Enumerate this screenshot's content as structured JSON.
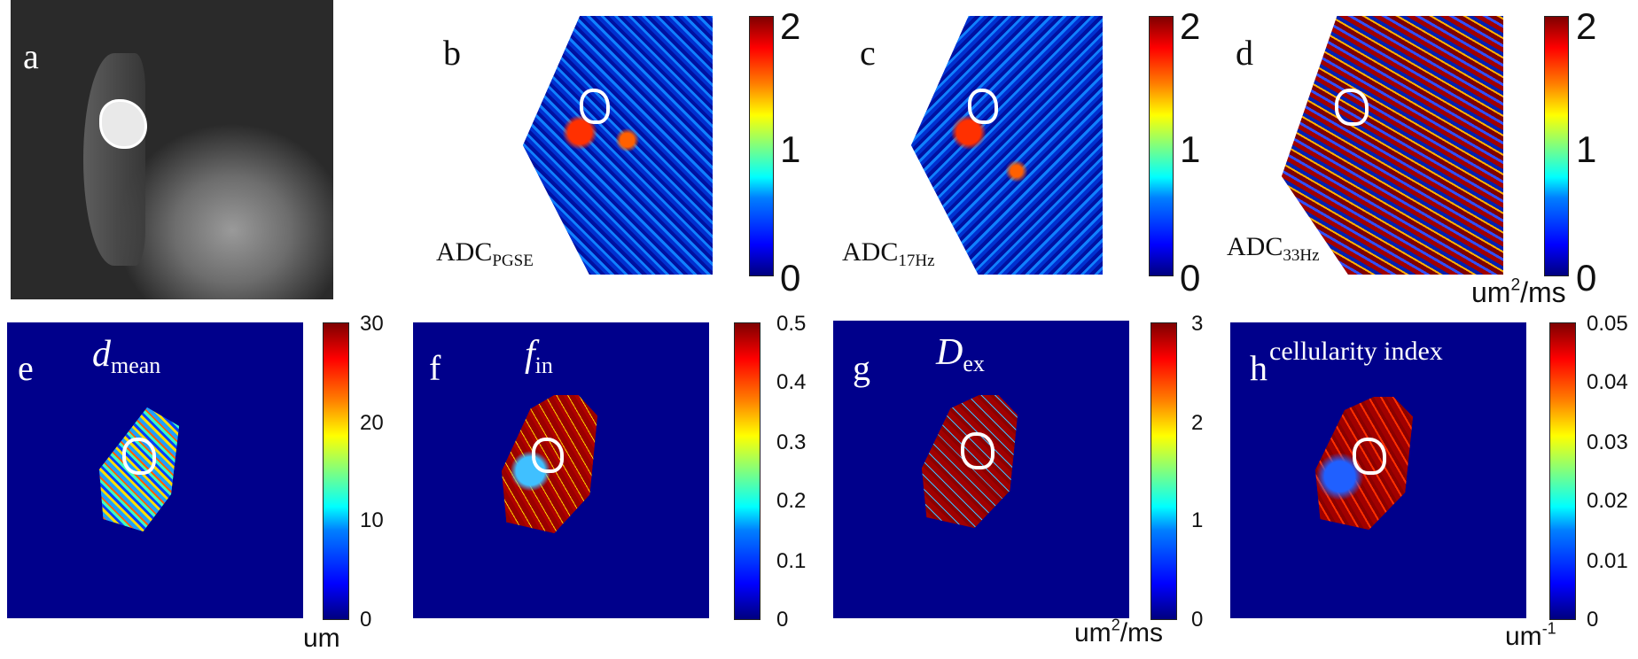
{
  "panels": {
    "a": {
      "letter": "a"
    },
    "b": {
      "letter": "b",
      "label": "ADC",
      "label_sub": "PGSE"
    },
    "c": {
      "letter": "c",
      "label": "ADC",
      "label_sub": "17Hz"
    },
    "d": {
      "letter": "d",
      "label": "ADC",
      "label_sub": "33Hz"
    },
    "e": {
      "letter": "e",
      "label": "d",
      "label_sub": "mean"
    },
    "f": {
      "letter": "f",
      "label": "f",
      "label_sub": "in"
    },
    "g": {
      "letter": "g",
      "label": "D",
      "label_sub": "ex"
    },
    "h": {
      "letter": "h",
      "label": "cellularity index"
    }
  },
  "colorbars": {
    "adc": {
      "ticks": [
        "2",
        "1",
        "0"
      ]
    },
    "dmean": {
      "ticks": [
        "30",
        "20",
        "10",
        "0"
      ],
      "unit": "um"
    },
    "fin": {
      "ticks": [
        "0.5",
        "0.4",
        "0.3",
        "0.2",
        "0.1",
        "0"
      ]
    },
    "dex": {
      "ticks": [
        "3",
        "2",
        "1",
        "0"
      ],
      "unit": "um",
      "unit_sup": "2",
      "unit_rest": "/ms"
    },
    "ci": {
      "ticks": [
        "0.05",
        "0.04",
        "0.03",
        "0.02",
        "0.01",
        "0"
      ],
      "unit": "um",
      "unit_sup": "-1"
    }
  },
  "top_unit": {
    "base": "um",
    "sup": "2",
    "rest": "/ms"
  },
  "colormap": [
    "#00007f",
    "#0000ff",
    "#007fff",
    "#00ffff",
    "#7fff7f",
    "#ffff00",
    "#ff7f00",
    "#ff0000",
    "#7f0000"
  ]
}
